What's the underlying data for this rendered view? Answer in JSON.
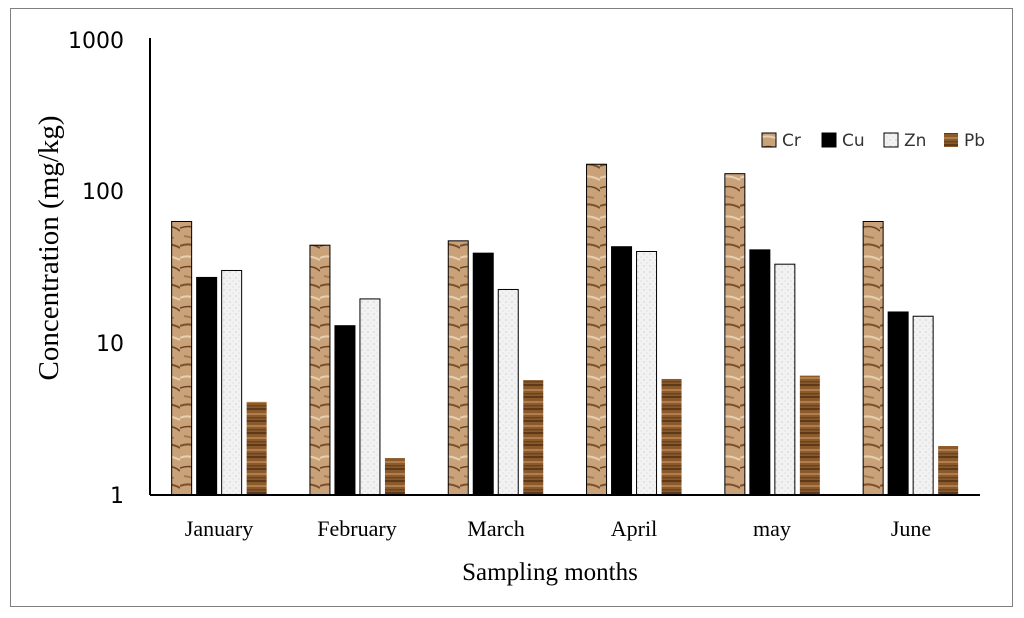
{
  "chart_data": {
    "type": "bar",
    "xlabel": "Sampling months",
    "ylabel": "Concentration (mg/kg)",
    "yscale": "log",
    "ylim": [
      1,
      1000
    ],
    "yticks": [
      "1",
      "10",
      "100",
      "1000"
    ],
    "legend_position": "top-right",
    "grid": false,
    "categories": [
      "January",
      "February",
      "March",
      "April",
      "may",
      "June"
    ],
    "series": [
      {
        "name": "Cr",
        "values": [
          63,
          44,
          47,
          150,
          130,
          63
        ],
        "color": "#c9a27a"
      },
      {
        "name": "Cu",
        "values": [
          27,
          13,
          39,
          43,
          41,
          16
        ],
        "color": "#000000"
      },
      {
        "name": "Zn",
        "values": [
          30,
          19.5,
          22.5,
          40,
          33,
          15
        ],
        "color": "#f2f2f2"
      },
      {
        "name": "Pb",
        "values": [
          4.1,
          1.75,
          5.7,
          5.8,
          6.1,
          2.1
        ],
        "color": "#8b5a2b"
      }
    ]
  }
}
